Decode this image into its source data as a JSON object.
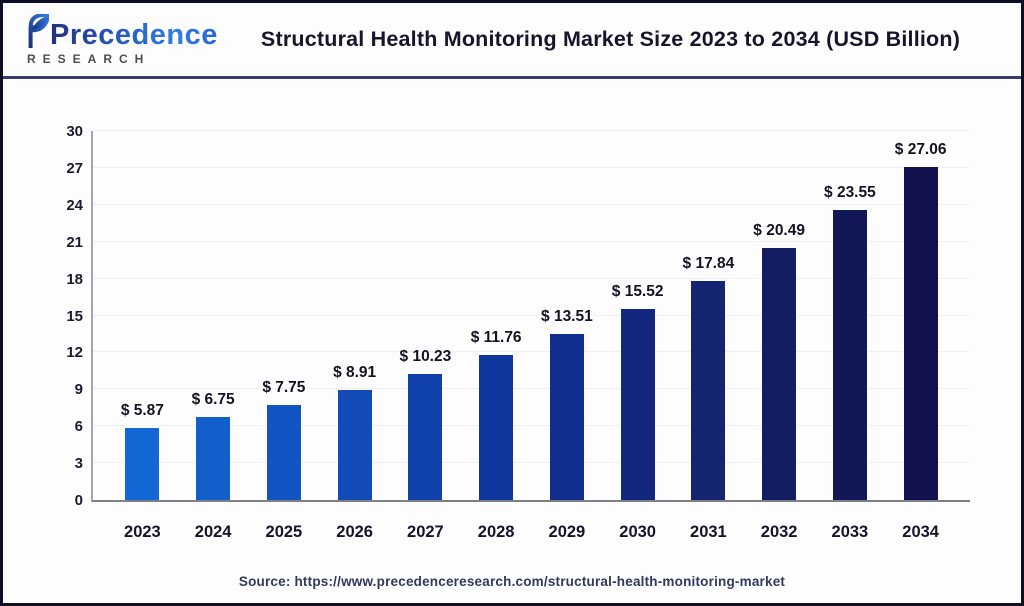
{
  "header": {
    "logo_brand": "Precedence",
    "logo_sub": "RESEARCH",
    "title": "Structural Health Monitoring Market Size 2023 to 2034 (USD Billion)"
  },
  "chart_data": {
    "type": "bar",
    "title": "Structural Health Monitoring Market Size 2023 to 2034 (USD Billion)",
    "categories": [
      "2023",
      "2024",
      "2025",
      "2026",
      "2027",
      "2028",
      "2029",
      "2030",
      "2031",
      "2032",
      "2033",
      "2034"
    ],
    "values": [
      5.87,
      6.75,
      7.75,
      8.91,
      10.23,
      11.76,
      13.51,
      15.52,
      17.84,
      20.49,
      23.55,
      27.06
    ],
    "value_labels": [
      "$ 5.87",
      "$ 6.75",
      "$ 7.75",
      "$ 8.91",
      "$ 10.23",
      "$ 11.76",
      "$ 13.51",
      "$ 15.52",
      "$ 17.84",
      "$ 20.49",
      "$ 23.55",
      "$ 27.06"
    ],
    "bar_colors": [
      "#1267d4",
      "#125ecb",
      "#1254c2",
      "#124ab8",
      "#1141ab",
      "#10379d",
      "#102e8e",
      "#13277f",
      "#152471",
      "#131d63",
      "#121857",
      "#13124e"
    ],
    "ylim": [
      0,
      30
    ],
    "yticks": [
      0,
      3,
      6,
      9,
      12,
      15,
      18,
      21,
      24,
      27,
      30
    ],
    "grid": true,
    "legend": "none",
    "xlabel": "",
    "ylabel": ""
  },
  "footer": {
    "source": "Source: https://www.precedenceresearch.com/structural-health-monitoring-market"
  },
  "colors": {
    "accent_light": "#1267d4",
    "accent_dark": "#13124e",
    "divider": "#3a3a6b",
    "title_text": "#15152b"
  }
}
